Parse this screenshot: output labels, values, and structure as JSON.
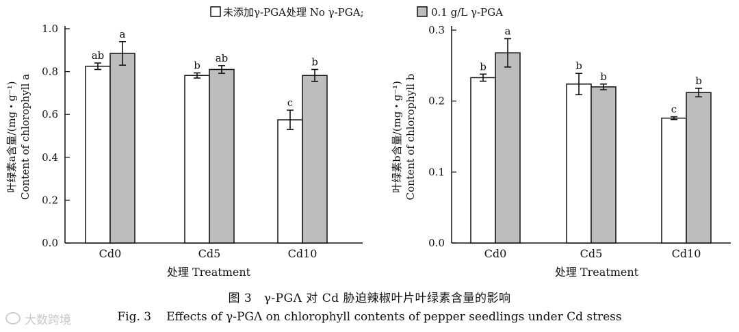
{
  "legend": {
    "items": [
      {
        "label": "未添加γ-PGA处理 No γ-PGA;",
        "color": "#ffffff"
      },
      {
        "label": "0.1 g/L γ-PGA",
        "color": "#bdbdbd"
      }
    ]
  },
  "caption": {
    "cn": "图 3　γ-PGΛ 对 Cd 胁迫辣椒叶片叶绿素含量的影响",
    "en_label": "Fig. 3",
    "en_text": "Effects of γ-PGΛ on chlorophyll contents of pepper seedlings under Cd stress"
  },
  "watermark": {
    "text": "大数跨境"
  },
  "chart_data": [
    {
      "type": "bar",
      "categories": [
        "Cd0",
        "Cd5",
        "Cd10"
      ],
      "xlabel": "处理 Treatment",
      "ylabel_cn": "叶绿素a含量/(mg・g⁻¹)",
      "ylabel_en": "Content of chlorophyll a",
      "ylim": [
        0,
        1.0
      ],
      "yticks": [
        "0.0",
        "0.2",
        "0.4",
        "0.6",
        "0.8",
        "1.0"
      ],
      "series": [
        {
          "name": "未添加γ-PGA处理 No γ-PGA",
          "color": "#ffffff",
          "values": [
            0.825,
            0.782,
            0.575
          ],
          "errors": [
            0.015,
            0.012,
            0.045
          ],
          "letters": [
            "ab",
            "b",
            "c"
          ]
        },
        {
          "name": "0.1 g/L γ-PGA",
          "color": "#bdbdbd",
          "values": [
            0.885,
            0.81,
            0.782
          ],
          "errors": [
            0.055,
            0.018,
            0.028
          ],
          "letters": [
            "a",
            "ab",
            "b"
          ]
        }
      ]
    },
    {
      "type": "bar",
      "categories": [
        "Cd0",
        "Cd5",
        "Cd10"
      ],
      "xlabel": "处理 Treatment",
      "ylabel_cn": "叶绿素b含量/(mg・g⁻¹)",
      "ylabel_en": "Content of chlorophyll b",
      "ylim": [
        0,
        0.3
      ],
      "yticks": [
        "0.0",
        "0.1",
        "0.2",
        "0.3"
      ],
      "series": [
        {
          "name": "未添加γ-PGA处理 No γ-PGA",
          "color": "#ffffff",
          "values": [
            0.233,
            0.224,
            0.176
          ],
          "errors": [
            0.005,
            0.015,
            0.002
          ],
          "letters": [
            "b",
            "b",
            "c"
          ]
        },
        {
          "name": "0.1 g/L γ-PGA",
          "color": "#bdbdbd",
          "values": [
            0.268,
            0.22,
            0.212
          ],
          "errors": [
            0.02,
            0.004,
            0.006
          ],
          "letters": [
            "a",
            "b",
            "b"
          ]
        }
      ]
    }
  ]
}
